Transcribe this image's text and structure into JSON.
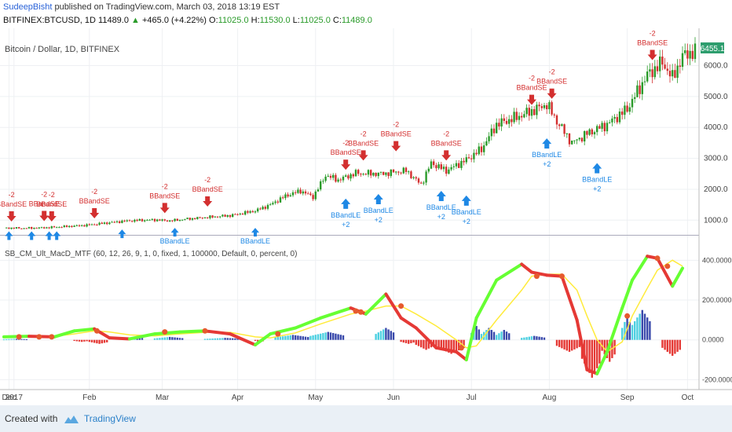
{
  "header": {
    "author": "SudeepBisht",
    "published_text": "published on TradingView.com, March 03, 2018 13:19 EST",
    "symbol": "BITFINEX:BTCUSD, 1D",
    "last": "11489.0",
    "change": "+465.0 (+4.22%)",
    "open_label": "O:",
    "open": "11025.0",
    "high_label": "H:",
    "high": "11530.0",
    "low_label": "L:",
    "low": "11025.0",
    "close_label": "C:",
    "close": "11489.0"
  },
  "footer": {
    "created_with": "Created with",
    "brand": "TradingView"
  },
  "colors": {
    "up": "#2a9b2a",
    "down": "#d32f2f",
    "long": "#1e88e5",
    "signal": "#ffeb3b",
    "macd_up": "#66ff33",
    "macd_down": "#e53935",
    "hist_pos_strong": "#3949ab",
    "hist_pos_weak": "#4dd0e1",
    "hist_neg": "#e53935",
    "label_bg": "#2e9e6e"
  },
  "chart_data": [
    {
      "type": "candlestick",
      "title": "Bitcoin / Dollar, 1D, BITFINEX",
      "last_price_label": "6455.1",
      "y_ticks": [
        1000,
        2000,
        3000,
        4000,
        5000,
        6000
      ],
      "y_tick_labels": [
        "1000.0",
        "2000.0",
        "3000.0",
        "4000.0",
        "5000.0",
        "6000.0"
      ],
      "ylim": [
        550,
        6700
      ],
      "x_ticks": [
        "Dec",
        "2017",
        "Feb",
        "Mar",
        "Apr",
        "May",
        "Jun",
        "Jul",
        "Aug",
        "Sep",
        "Oct"
      ],
      "price_path": [
        [
          0,
          750
        ],
        [
          8,
          740
        ],
        [
          16,
          755
        ],
        [
          24,
          790
        ],
        [
          32,
          830
        ],
        [
          40,
          900
        ],
        [
          48,
          970
        ],
        [
          55,
          1000
        ],
        [
          60,
          1010
        ],
        [
          66,
          980
        ],
        [
          74,
          1050
        ],
        [
          82,
          1100
        ],
        [
          90,
          1150
        ],
        [
          100,
          1300
        ],
        [
          106,
          1500
        ],
        [
          112,
          1780
        ],
        [
          118,
          1950
        ],
        [
          123,
          1750
        ],
        [
          128,
          2450
        ],
        [
          133,
          2300
        ],
        [
          140,
          2520
        ],
        [
          150,
          2500
        ],
        [
          160,
          2600
        ],
        [
          166,
          2150
        ],
        [
          170,
          2850
        ],
        [
          176,
          2600
        ],
        [
          184,
          2950
        ],
        [
          190,
          3300
        ],
        [
          196,
          4100
        ],
        [
          203,
          4300
        ],
        [
          212,
          4600
        ],
        [
          216,
          4750
        ],
        [
          220,
          4200
        ],
        [
          226,
          3500
        ],
        [
          232,
          3800
        ],
        [
          240,
          4100
        ],
        [
          248,
          4600
        ],
        [
          256,
          5700
        ],
        [
          262,
          6100
        ],
        [
          266,
          5600
        ],
        [
          270,
          6300
        ],
        [
          274,
          6450
        ]
      ],
      "short_signals": [
        {
          "day": 3,
          "price": 780,
          "label": "BBandSE",
          "qty": "-2"
        },
        {
          "day": 16,
          "price": 790,
          "label": "BBandSE",
          "qty": "-2"
        },
        {
          "day": 19,
          "price": 780,
          "label": "BBandSE",
          "qty": "-2"
        },
        {
          "day": 36,
          "price": 880,
          "label": "BBandSE",
          "qty": "-2"
        },
        {
          "day": 64,
          "price": 1050,
          "label": "BBandSE",
          "qty": "-2"
        },
        {
          "day": 81,
          "price": 1260,
          "label": "BBandSE",
          "qty": "-2"
        },
        {
          "day": 136,
          "price": 2450,
          "label": "BBandSE",
          "qty": "-2"
        },
        {
          "day": 143,
          "price": 2750,
          "label": "BBandSE",
          "qty": "-2"
        },
        {
          "day": 156,
          "price": 3050,
          "label": "BBandSE",
          "qty": "-2"
        },
        {
          "day": 176,
          "price": 2750,
          "label": "BBandSE",
          "qty": "-2"
        },
        {
          "day": 210,
          "price": 4550,
          "label": "BBandSE",
          "qty": "-2"
        },
        {
          "day": 218,
          "price": 4750,
          "label": "BBandSE",
          "qty": "-2"
        },
        {
          "day": 258,
          "price": 6000,
          "label": "BBandSE",
          "qty": "-2"
        }
      ],
      "long_signals": [
        {
          "day": 136,
          "price": 1850,
          "label": "BBandLE",
          "qty": "+2"
        },
        {
          "day": 149,
          "price": 2000,
          "label": "BBandLE",
          "qty": "+2"
        },
        {
          "day": 174,
          "price": 2100,
          "label": "BBandLE",
          "qty": "+2"
        },
        {
          "day": 184,
          "price": 1950,
          "label": "BBandLE",
          "qty": "+2"
        },
        {
          "day": 216,
          "price": 3800,
          "label": "BBandLE",
          "qty": "+2"
        },
        {
          "day": 236,
          "price": 3000,
          "label": "BBandLE",
          "qty": "+2"
        }
      ],
      "minor_long_arrows": [
        {
          "day": 2,
          "price": 640
        },
        {
          "day": 11,
          "price": 640
        },
        {
          "day": 18,
          "price": 640
        },
        {
          "day": 21,
          "price": 640
        },
        {
          "day": 47,
          "price": 700
        },
        {
          "day": 68,
          "price": 750,
          "label": "BBandLE"
        },
        {
          "day": 100,
          "price": 750,
          "label": "BBandLE"
        }
      ]
    },
    {
      "type": "line",
      "title": "SB_CM_Ult_MacD_MTF (60, 12, 26, 9, 1, 0, fixed, 1, 100000, Default, 0, percent, 0)",
      "y_ticks": [
        -200,
        0,
        200,
        400
      ],
      "y_tick_labels": [
        "-200.0000",
        "0.0000",
        "200.0000",
        "400.0000"
      ],
      "ylim": [
        -230,
        500
      ],
      "macd_path": [
        [
          0,
          15
        ],
        [
          10,
          18
        ],
        [
          20,
          15
        ],
        [
          28,
          45
        ],
        [
          36,
          55
        ],
        [
          42,
          10
        ],
        [
          50,
          5
        ],
        [
          60,
          30
        ],
        [
          70,
          40
        ],
        [
          80,
          45
        ],
        [
          90,
          30
        ],
        [
          100,
          -25
        ],
        [
          106,
          30
        ],
        [
          116,
          60
        ],
        [
          126,
          110
        ],
        [
          138,
          160
        ],
        [
          144,
          130
        ],
        [
          152,
          230
        ],
        [
          158,
          110
        ],
        [
          164,
          60
        ],
        [
          172,
          -40
        ],
        [
          180,
          -60
        ],
        [
          184,
          -100
        ],
        [
          188,
          110
        ],
        [
          196,
          300
        ],
        [
          206,
          380
        ],
        [
          210,
          340
        ],
        [
          216,
          325
        ],
        [
          222,
          320
        ],
        [
          228,
          100
        ],
        [
          232,
          -150
        ],
        [
          236,
          -170
        ],
        [
          240,
          -60
        ],
        [
          246,
          160
        ],
        [
          250,
          300
        ],
        [
          256,
          420
        ],
        [
          260,
          410
        ],
        [
          266,
          270
        ],
        [
          270,
          360
        ]
      ],
      "signal_path": [
        [
          0,
          12
        ],
        [
          10,
          15
        ],
        [
          20,
          18
        ],
        [
          28,
          30
        ],
        [
          36,
          45
        ],
        [
          42,
          40
        ],
        [
          50,
          25
        ],
        [
          60,
          20
        ],
        [
          70,
          30
        ],
        [
          80,
          38
        ],
        [
          90,
          38
        ],
        [
          100,
          15
        ],
        [
          106,
          10
        ],
        [
          116,
          35
        ],
        [
          126,
          80
        ],
        [
          138,
          130
        ],
        [
          144,
          145
        ],
        [
          152,
          170
        ],
        [
          158,
          170
        ],
        [
          164,
          130
        ],
        [
          172,
          70
        ],
        [
          180,
          0
        ],
        [
          184,
          -40
        ],
        [
          188,
          -30
        ],
        [
          196,
          100
        ],
        [
          206,
          250
        ],
        [
          210,
          320
        ],
        [
          216,
          330
        ],
        [
          222,
          330
        ],
        [
          228,
          250
        ],
        [
          232,
          120
        ],
        [
          236,
          0
        ],
        [
          240,
          -60
        ],
        [
          246,
          -10
        ],
        [
          250,
          120
        ],
        [
          256,
          260
        ],
        [
          260,
          350
        ],
        [
          266,
          400
        ],
        [
          270,
          370
        ]
      ],
      "histogram": [
        {
          "start": 0,
          "end": 10,
          "value": 5
        },
        {
          "start": 28,
          "end": 34,
          "value": -10
        },
        {
          "start": 34,
          "end": 42,
          "value": -20
        },
        {
          "start": 50,
          "end": 56,
          "value": 15
        },
        {
          "start": 60,
          "end": 72,
          "value": 15
        },
        {
          "start": 80,
          "end": 96,
          "value": 10
        },
        {
          "start": 100,
          "end": 104,
          "value": -10
        },
        {
          "start": 108,
          "end": 122,
          "value": 25
        },
        {
          "start": 122,
          "end": 136,
          "value": 40
        },
        {
          "start": 148,
          "end": 156,
          "value": 60
        },
        {
          "start": 158,
          "end": 164,
          "value": -20
        },
        {
          "start": 164,
          "end": 172,
          "value": -50
        },
        {
          "start": 172,
          "end": 184,
          "value": -70
        },
        {
          "start": 186,
          "end": 190,
          "value": 70
        },
        {
          "start": 190,
          "end": 196,
          "value": 60
        },
        {
          "start": 196,
          "end": 202,
          "value": 50
        },
        {
          "start": 206,
          "end": 216,
          "value": 20
        },
        {
          "start": 220,
          "end": 230,
          "value": -60
        },
        {
          "start": 230,
          "end": 238,
          "value": -190
        },
        {
          "start": 238,
          "end": 244,
          "value": -110
        },
        {
          "start": 246,
          "end": 250,
          "value": 120
        },
        {
          "start": 250,
          "end": 258,
          "value": 150
        },
        {
          "start": 262,
          "end": 270,
          "value": -80
        }
      ],
      "cross_points": [
        [
          6,
          15
        ],
        [
          14,
          15
        ],
        [
          19,
          15
        ],
        [
          37,
          45
        ],
        [
          64,
          40
        ],
        [
          80,
          45
        ],
        [
          109,
          30
        ],
        [
          140,
          145
        ],
        [
          142,
          140
        ],
        [
          158,
          170
        ],
        [
          182,
          -40
        ],
        [
          212,
          320
        ],
        [
          222,
          320
        ],
        [
          248,
          120
        ],
        [
          260,
          410
        ],
        [
          264,
          370
        ]
      ]
    }
  ]
}
